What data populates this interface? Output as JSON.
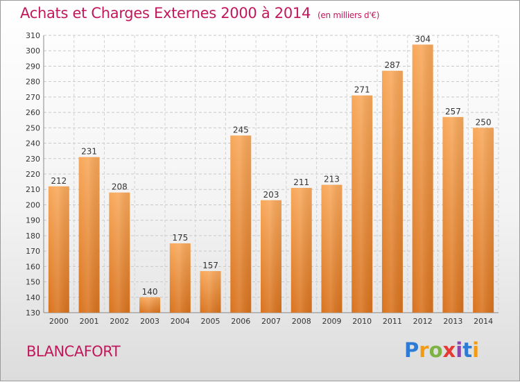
{
  "header": {
    "title": "Achats et Charges Externes 2000 à 2014",
    "subtitle": "(en milliers d'€)"
  },
  "footer": {
    "commune": "BLANCAFORT",
    "logo": [
      "P",
      "r",
      "o",
      "x",
      "i",
      "t",
      "i"
    ]
  },
  "colors": {
    "title": "#c2185b",
    "bar_top": "#f8a85a",
    "bar_bottom": "#d9731e"
  },
  "chart_data": {
    "type": "bar",
    "title": "Achats et Charges Externes 2000 à 2014",
    "subtitle": "(en milliers d'€)",
    "categories": [
      "2000",
      "2001",
      "2002",
      "2003",
      "2004",
      "2005",
      "2006",
      "2007",
      "2008",
      "2009",
      "2010",
      "2011",
      "2012",
      "2013",
      "2014"
    ],
    "values": [
      212,
      231,
      208,
      140,
      175,
      157,
      245,
      203,
      211,
      213,
      271,
      287,
      304,
      257,
      250
    ],
    "ylim": [
      130,
      310
    ],
    "yticks": [
      130,
      140,
      150,
      160,
      170,
      180,
      190,
      200,
      210,
      220,
      230,
      240,
      250,
      260,
      270,
      280,
      290,
      300,
      310
    ],
    "grid": true,
    "xlabel": "",
    "ylabel": ""
  }
}
